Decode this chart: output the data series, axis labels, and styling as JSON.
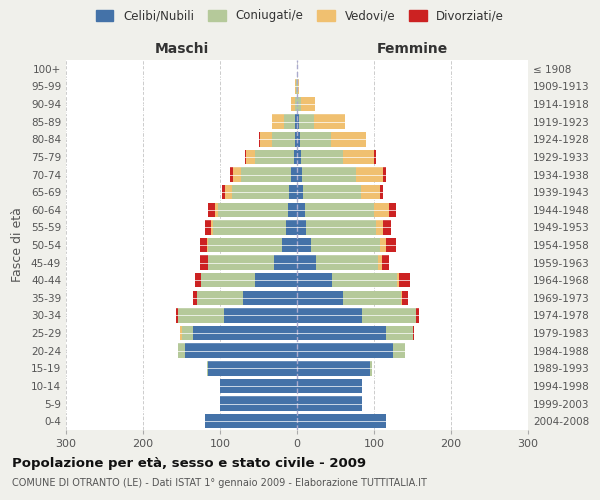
{
  "age_groups": [
    "0-4",
    "5-9",
    "10-14",
    "15-19",
    "20-24",
    "25-29",
    "30-34",
    "35-39",
    "40-44",
    "45-49",
    "50-54",
    "55-59",
    "60-64",
    "65-69",
    "70-74",
    "75-79",
    "80-84",
    "85-89",
    "90-94",
    "95-99",
    "100+"
  ],
  "birth_years": [
    "2004-2008",
    "1999-2003",
    "1994-1998",
    "1989-1993",
    "1984-1988",
    "1979-1983",
    "1974-1978",
    "1969-1973",
    "1964-1968",
    "1959-1963",
    "1954-1958",
    "1949-1953",
    "1944-1948",
    "1939-1943",
    "1934-1938",
    "1929-1933",
    "1924-1928",
    "1919-1923",
    "1914-1918",
    "1909-1913",
    "≤ 1908"
  ],
  "maschi": {
    "celibi": [
      120,
      100,
      100,
      115,
      145,
      135,
      95,
      70,
      55,
      30,
      20,
      14,
      12,
      10,
      8,
      4,
      3,
      2,
      0,
      0,
      0
    ],
    "coniugati": [
      0,
      0,
      0,
      2,
      10,
      15,
      60,
      60,
      70,
      85,
      95,
      95,
      90,
      75,
      65,
      50,
      30,
      15,
      3,
      1,
      0
    ],
    "vedovi": [
      0,
      0,
      0,
      0,
      0,
      2,
      0,
      0,
      0,
      1,
      2,
      3,
      5,
      8,
      10,
      12,
      15,
      15,
      5,
      1,
      0
    ],
    "divorziati": [
      0,
      0,
      0,
      0,
      0,
      0,
      2,
      5,
      7,
      10,
      9,
      8,
      8,
      5,
      4,
      2,
      1,
      0,
      0,
      0,
      0
    ]
  },
  "femmine": {
    "nubili": [
      115,
      85,
      85,
      95,
      125,
      115,
      85,
      60,
      45,
      25,
      18,
      12,
      10,
      8,
      7,
      5,
      4,
      2,
      0,
      0,
      0
    ],
    "coniugate": [
      0,
      0,
      0,
      2,
      15,
      35,
      70,
      75,
      85,
      80,
      90,
      90,
      90,
      75,
      70,
      55,
      40,
      20,
      5,
      1,
      0
    ],
    "vedove": [
      0,
      0,
      0,
      0,
      0,
      0,
      0,
      1,
      2,
      5,
      8,
      10,
      20,
      25,
      35,
      40,
      45,
      40,
      18,
      2,
      0
    ],
    "divorziate": [
      0,
      0,
      0,
      0,
      0,
      2,
      4,
      8,
      15,
      10,
      12,
      10,
      8,
      4,
      4,
      2,
      1,
      0,
      0,
      0,
      0
    ]
  },
  "colors": {
    "celibi_nubili": "#4472a8",
    "coniugati": "#b5c99a",
    "vedovi": "#f0c070",
    "divorziati": "#cc2222"
  },
  "title": "Popolazione per età, sesso e stato civile - 2009",
  "subtitle": "COMUNE DI OTRANTO (LE) - Dati ISTAT 1° gennaio 2009 - Elaborazione TUTTITALIA.IT",
  "xlabel_left": "Maschi",
  "xlabel_right": "Femmine",
  "ylabel_left": "Fasce di età",
  "xlim": 300,
  "legend_labels": [
    "Celibi/Nubili",
    "Coniugati/e",
    "Vedovi/e",
    "Divorziati/e"
  ],
  "bg_color": "#f0f0eb",
  "plot_bg": "#ffffff"
}
